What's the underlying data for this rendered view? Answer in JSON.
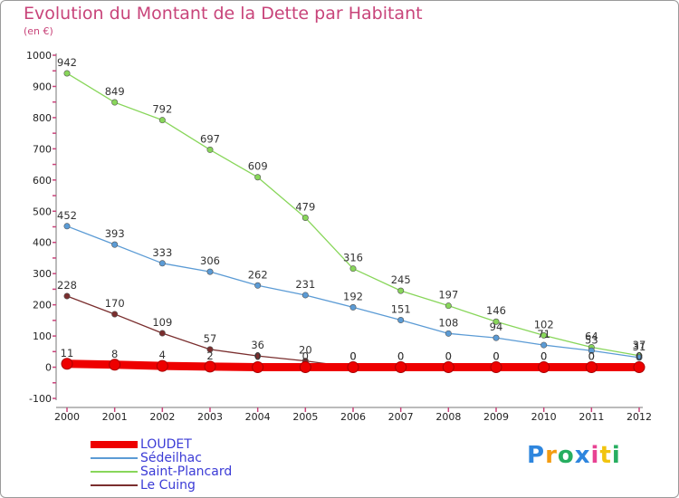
{
  "title": "Evolution du Montant de la Dette par Habitant",
  "unit": "(en €)",
  "logo": {
    "text": "Proxiti",
    "colors": [
      "#2e86de",
      "#f39c12",
      "#27ae60",
      "#2e86de",
      "#e84393",
      "#f1c40f",
      "#27ae60"
    ]
  },
  "chart_data": {
    "type": "line",
    "x": [
      "2000",
      "2001",
      "2002",
      "2003",
      "2004",
      "2005",
      "2006",
      "2007",
      "2008",
      "2009",
      "2010",
      "2011",
      "2012"
    ],
    "ylim": [
      -100,
      1000
    ],
    "yticks": [
      "-100",
      "0",
      "100",
      "200",
      "300",
      "400",
      "500",
      "600",
      "700",
      "800",
      "900",
      "1000"
    ],
    "grid": false,
    "legend_position": "bottom-left",
    "series": [
      {
        "name": "LOUDET",
        "color": "#ee0000",
        "bold": true,
        "values": [
          11,
          8,
          4,
          2,
          0,
          0,
          0,
          0,
          0,
          0,
          0,
          0,
          0
        ],
        "labels": [
          "11",
          "8",
          "4",
          "2",
          "0",
          "0",
          "0",
          "0",
          "0",
          "0",
          "0",
          "0",
          "0"
        ]
      },
      {
        "name": "Sédeilhac",
        "color": "#5b9bd5",
        "bold": false,
        "values": [
          452,
          393,
          333,
          306,
          262,
          231,
          192,
          151,
          108,
          94,
          71,
          53,
          31
        ],
        "labels": [
          "452",
          "393",
          "333",
          "306",
          "262",
          "231",
          "192",
          "151",
          "108",
          "94",
          "71",
          "53",
          "31"
        ]
      },
      {
        "name": "Saint-Plancard",
        "color": "#88d65a",
        "bold": false,
        "values": [
          942,
          849,
          792,
          697,
          609,
          479,
          316,
          245,
          197,
          146,
          102,
          64,
          37
        ],
        "labels": [
          "942",
          "849",
          "792",
          "697",
          "609",
          "479",
          "316",
          "245",
          "197",
          "146",
          "102",
          "64",
          "37"
        ]
      },
      {
        "name": "Le Cuing",
        "color": "#7a2e2e",
        "bold": false,
        "values": [
          228,
          170,
          109,
          57,
          36,
          20,
          0,
          0,
          0,
          0,
          0,
          0,
          0
        ],
        "labels": [
          "228",
          "170",
          "109",
          "57",
          "36",
          "20",
          "0",
          "0",
          "0",
          "0",
          "0",
          "0",
          "0"
        ]
      }
    ]
  }
}
